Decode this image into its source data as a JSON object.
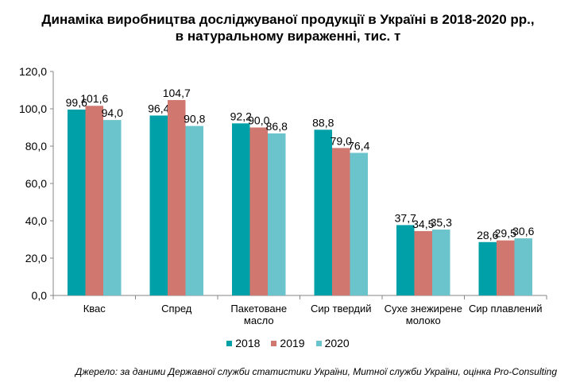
{
  "chart_data": {
    "type": "bar",
    "title_line1": "Динаміка виробництва досліджуваної продукції в Україні в 2018-2020 рр.,",
    "title_line2": "в натуральному вираженні, тис. т",
    "categories": [
      "Квас",
      "Спред",
      "Пакетоване|масло",
      "Сир твердий",
      "Сухе знежирене|молоко",
      "Сир плавлений"
    ],
    "series": [
      {
        "name": "2018",
        "color": "#00A0A8",
        "values": [
          99.6,
          96.4,
          92.2,
          88.8,
          37.7,
          28.6
        ],
        "labels": [
          "99,6",
          "96,4",
          "92,2",
          "88,8",
          "37,7",
          "28,6"
        ]
      },
      {
        "name": "2019",
        "color": "#D07870",
        "values": [
          101.6,
          104.7,
          90.0,
          79.0,
          34.5,
          29.5
        ],
        "labels": [
          "101,6",
          "104,7",
          "90,0",
          "79,0",
          "34,5",
          "29,5"
        ]
      },
      {
        "name": "2020",
        "color": "#6BC3CB",
        "values": [
          94.0,
          90.8,
          86.8,
          76.4,
          35.3,
          30.6
        ],
        "labels": [
          "94,0",
          "90,8",
          "86,8",
          "76,4",
          "35,3",
          "30,6"
        ]
      }
    ],
    "y_ticks": [
      "0,0",
      "20,0",
      "40,0",
      "60,0",
      "80,0",
      "100,0",
      "120,0"
    ],
    "ylim": [
      0,
      120
    ],
    "grid": false,
    "legend_position": "bottom",
    "source_note": "Джерело: за даними Державної служби статистики України, Митної служби України, оцінка Pro-Consulting"
  }
}
